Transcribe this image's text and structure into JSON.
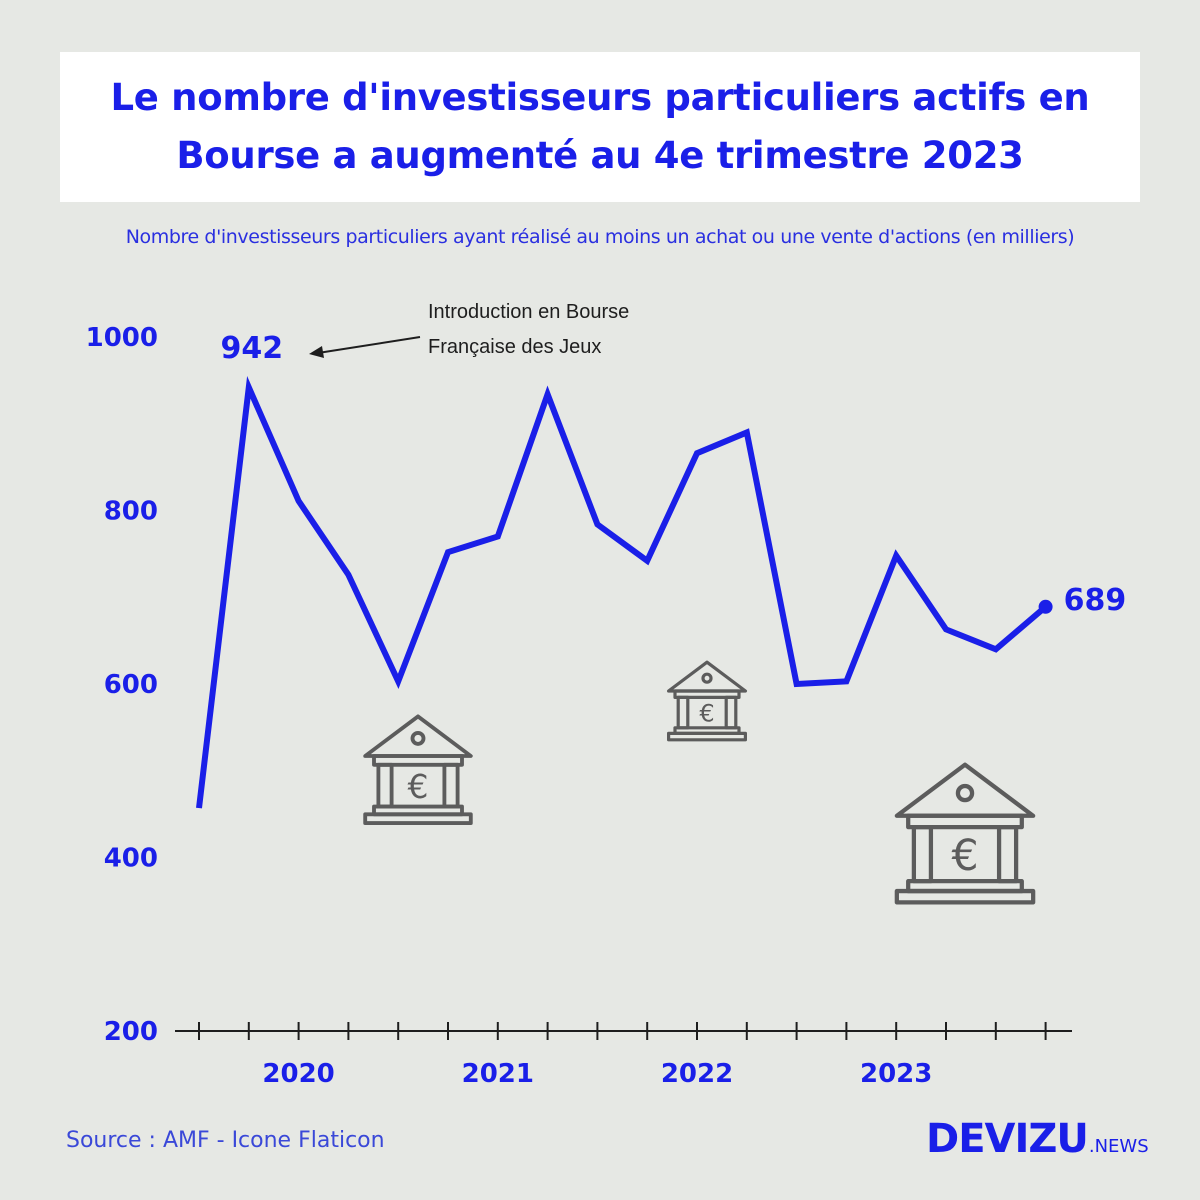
{
  "title": "Le nombre d'investisseurs particuliers actifs en Bourse a augmenté au 4e trimestre 2023",
  "subtitle": "Nombre d'investisseurs particuliers ayant réalisé au moins un achat ou une vente d'actions (en milliers)",
  "source": "Source : AMF - Icone Flaticon",
  "brand": {
    "main": "DEVIZU",
    "suffix": ".NEWS"
  },
  "colors": {
    "line": "#1a1fe8",
    "axis": "#1e1e1e",
    "icon": "#5c5c5c",
    "background": "#e6e8e4"
  },
  "annotation": {
    "line1": "Introduction en Bourse",
    "line2": "Française des Jeux"
  },
  "icons": [
    "bank-euro-icon",
    "bank-euro-icon",
    "bank-euro-icon"
  ],
  "chart_data": {
    "type": "line",
    "title": "",
    "xlabel": "",
    "ylabel": "",
    "ylim": [
      200,
      1000
    ],
    "yticks": [
      200,
      400,
      600,
      800,
      1000
    ],
    "year_labels": [
      "2020",
      "2021",
      "2022",
      "2023"
    ],
    "x": [
      "2019 T3",
      "2019 T4",
      "2020 T1",
      "2020 T2",
      "2020 T3",
      "2020 T4",
      "2021 T1",
      "2021 T2",
      "2021 T3",
      "2021 T4",
      "2022 T1",
      "2022 T2",
      "2022 T3",
      "2022 T4",
      "2023 T1",
      "2023 T2",
      "2023 T3",
      "2023 T4"
    ],
    "values": [
      457,
      942,
      811,
      726,
      603,
      752,
      770,
      934,
      784,
      742,
      866,
      890,
      600,
      603,
      748,
      663,
      640,
      689
    ],
    "labeled_points": [
      {
        "index": 1,
        "label": "942"
      },
      {
        "index": 17,
        "label": "689"
      }
    ]
  }
}
